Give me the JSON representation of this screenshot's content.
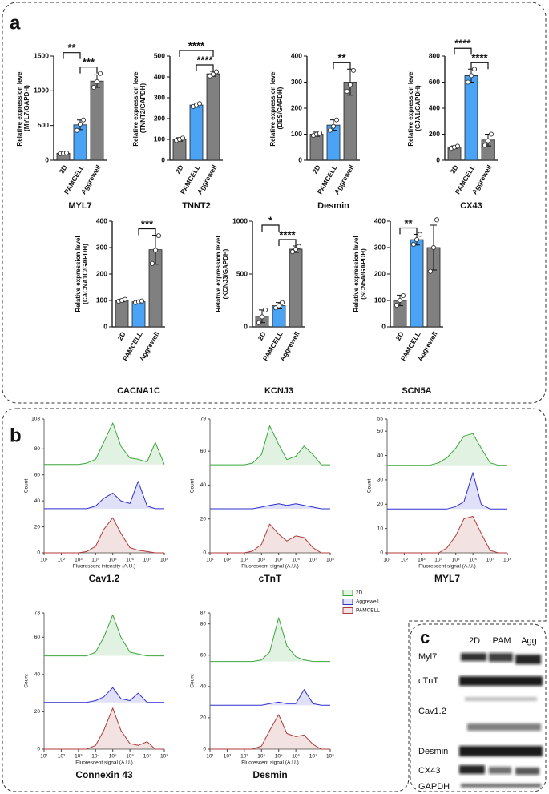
{
  "panel_labels": [
    "a",
    "b",
    "c"
  ],
  "chart_data": [
    {
      "type": "bar",
      "title": "MYL7",
      "ylabel": [
        "Relative expression level",
        "(MYL7/GAPDH)"
      ],
      "categories": [
        "2D",
        "PAMCELL",
        "Aggrewell"
      ],
      "values": [
        100,
        510,
        1140
      ],
      "errors": [
        8,
        70,
        90
      ],
      "points": [
        [
          95,
          100,
          105
        ],
        [
          430,
          520,
          580
        ],
        [
          1050,
          1130,
          1250
        ]
      ],
      "colors": [
        "#808080",
        "#4aa3f5",
        "#808080"
      ],
      "ylim": [
        0,
        1500
      ],
      "yticks": [
        0,
        500,
        1000,
        1500
      ],
      "annotations": [
        {
          "text": "**",
          "between": [
            "2D",
            "PAMCELL"
          ]
        },
        {
          "text": "***",
          "between": [
            "PAMCELL",
            "Aggrewell"
          ]
        }
      ]
    },
    {
      "type": "bar",
      "title": "TNNT2",
      "ylabel": [
        "Relative expression level",
        "(TNNT2/GAPDH)"
      ],
      "categories": [
        "2D",
        "PAMCELL",
        "Aggrewell"
      ],
      "values": [
        100,
        265,
        415
      ],
      "errors": [
        8,
        10,
        12
      ],
      "points": [
        [
          95,
          100,
          106
        ],
        [
          258,
          266,
          272
        ],
        [
          405,
          413,
          425
        ]
      ],
      "colors": [
        "#808080",
        "#4aa3f5",
        "#808080"
      ],
      "ylim": [
        0,
        500
      ],
      "yticks": [
        0,
        100,
        200,
        300,
        400,
        500
      ],
      "annotations": [
        {
          "text": "****",
          "between": [
            "2D",
            "Aggrewell"
          ]
        },
        {
          "text": "****",
          "between": [
            "PAMCELL",
            "Aggrewell"
          ]
        }
      ]
    },
    {
      "type": "bar",
      "title": "Desmin",
      "ylabel": [
        "Relative expression level",
        "(DES/GAPDH)"
      ],
      "categories": [
        "2D",
        "PAMCELL",
        "Aggrewell"
      ],
      "values": [
        100,
        135,
        300
      ],
      "errors": [
        8,
        20,
        50
      ],
      "points": [
        [
          95,
          100,
          104
        ],
        [
          115,
          130,
          155
        ],
        [
          265,
          290,
          345
        ]
      ],
      "colors": [
        "#808080",
        "#4aa3f5",
        "#808080"
      ],
      "ylim": [
        0,
        400
      ],
      "yticks": [
        0,
        100,
        200,
        300,
        400
      ],
      "annotations": [
        {
          "text": "**",
          "between": [
            "PAMCELL",
            "Aggrewell"
          ]
        }
      ]
    },
    {
      "type": "bar",
      "title": "CX43",
      "ylabel": [
        "Relative expression level",
        "(GJA1/GAPDH)"
      ],
      "categories": [
        "2D",
        "PAMCELL",
        "Aggrewell"
      ],
      "values": [
        100,
        650,
        155
      ],
      "errors": [
        10,
        50,
        45
      ],
      "points": [
        [
          92,
          100,
          108
        ],
        [
          600,
          650,
          700
        ],
        [
          115,
          150,
          200
        ]
      ],
      "colors": [
        "#808080",
        "#4aa3f5",
        "#808080"
      ],
      "ylim": [
        0,
        800
      ],
      "yticks": [
        0,
        200,
        400,
        600,
        800
      ],
      "annotations": [
        {
          "text": "****",
          "between": [
            "2D",
            "PAMCELL"
          ]
        },
        {
          "text": "****",
          "between": [
            "PAMCELL",
            "Aggrewell"
          ]
        }
      ]
    },
    {
      "type": "bar",
      "title": "CACNA1C",
      "ylabel": [
        "Relative expression level",
        "(CACNA1C/GAPDH)"
      ],
      "categories": [
        "2D",
        "PAMCELL",
        "Aggrewell"
      ],
      "values": [
        100,
        95,
        292
      ],
      "errors": [
        5,
        4,
        55
      ],
      "points": [
        [
          97,
          100,
          104
        ],
        [
          92,
          95,
          98
        ],
        [
          240,
          290,
          345
        ]
      ],
      "colors": [
        "#808080",
        "#4aa3f5",
        "#808080"
      ],
      "ylim": [
        0,
        400
      ],
      "yticks": [
        0,
        100,
        200,
        300,
        400
      ],
      "annotations": [
        {
          "text": "***",
          "between": [
            "PAMCELL",
            "Aggrewell"
          ]
        }
      ]
    },
    {
      "type": "bar",
      "title": "KCNJ3",
      "ylabel": [
        "Relative expression level",
        "(KCNJ3/GAPDH)"
      ],
      "categories": [
        "2D",
        "PAMCELL",
        "Aggrewell"
      ],
      "values": [
        100,
        200,
        735
      ],
      "errors": [
        60,
        30,
        30
      ],
      "points": [
        [
          40,
          95,
          160
        ],
        [
          180,
          200,
          230
        ],
        [
          710,
          735,
          760
        ]
      ],
      "colors": [
        "#808080",
        "#4aa3f5",
        "#808080"
      ],
      "ylim": [
        0,
        1000
      ],
      "yticks": [
        0,
        500,
        1000
      ],
      "annotations": [
        {
          "text": "*",
          "between": [
            "2D",
            "PAMCELL"
          ]
        },
        {
          "text": "****",
          "between": [
            "PAMCELL",
            "Aggrewell"
          ]
        }
      ]
    },
    {
      "type": "bar",
      "title": "SCN5A",
      "ylabel": [
        "Relative expression level",
        "(SCN5A/GAPDH)"
      ],
      "categories": [
        "2D",
        "PAMCELL",
        "Aggrewell"
      ],
      "values": [
        100,
        330,
        300
      ],
      "errors": [
        20,
        20,
        85
      ],
      "points": [
        [
          82,
          100,
          118
        ],
        [
          312,
          330,
          350
        ],
        [
          210,
          300,
          405
        ]
      ],
      "colors": [
        "#808080",
        "#4aa3f5",
        "#808080"
      ],
      "ylim": [
        0,
        400
      ],
      "yticks": [
        0,
        100,
        200,
        300,
        400
      ],
      "annotations": [
        {
          "text": "**",
          "between": [
            "2D",
            "PAMCELL"
          ]
        }
      ]
    },
    {
      "type": "area",
      "title": "Cav1.2",
      "xlabel": "Fluorescent intensity (A.U.)",
      "ylabel": "Count",
      "log_x": true,
      "x": [
        10,
        30,
        100,
        300,
        1000,
        3000,
        10000,
        30000,
        100000,
        300000,
        1000000,
        3000000,
        10000000,
        30000000,
        100000000
      ],
      "xlim": [
        10,
        100000000
      ],
      "xticks": [
        {
          "value": 10,
          "label": "10¹"
        },
        {
          "value": 100,
          "label": "10²"
        },
        {
          "value": 1000,
          "label": "10³"
        },
        {
          "value": 10000,
          "label": "10⁴"
        },
        {
          "value": 100000,
          "label": "10⁵"
        },
        {
          "value": 1000000,
          "label": "10⁶"
        },
        {
          "value": 10000000,
          "label": "10⁷"
        },
        {
          "value": 100000000,
          "label": "10⁸"
        }
      ],
      "ylim": [
        0,
        103
      ],
      "yticks": [
        0,
        20,
        40,
        60,
        80,
        103
      ],
      "series": [
        {
          "name": "2D",
          "color": "#3aa63a",
          "values": [
            68,
            68,
            68,
            68,
            68,
            69,
            72,
            85,
            100,
            82,
            73,
            72,
            70,
            85,
            68
          ]
        },
        {
          "name": "Aggrewell",
          "color": "#2f2fd0",
          "values": [
            34,
            34,
            34,
            34,
            34,
            34,
            36,
            42,
            46,
            40,
            38,
            55,
            36,
            34,
            34
          ]
        },
        {
          "name": "PAMCELL",
          "color": "#b03a3a",
          "values": [
            0,
            0,
            0,
            0,
            0,
            1,
            5,
            18,
            27,
            15,
            4,
            2,
            1,
            0,
            0
          ]
        }
      ]
    },
    {
      "type": "area",
      "title": "cTnT",
      "xlabel": "Fluorescent signal (A.U.)",
      "ylabel": "Count",
      "log_x": true,
      "x": [
        10,
        30,
        100,
        300,
        1000,
        3000,
        10000,
        30000,
        100000,
        300000,
        1000000,
        3000000,
        10000000,
        30000000,
        100000000
      ],
      "xlim": [
        10,
        100000000
      ],
      "xticks": [
        {
          "value": 10,
          "label": "10¹"
        },
        {
          "value": 100,
          "label": "10²"
        },
        {
          "value": 1000,
          "label": "10³"
        },
        {
          "value": 10000,
          "label": "10⁴"
        },
        {
          "value": 100000,
          "label": "10⁵"
        },
        {
          "value": 1000000,
          "label": "10⁶"
        },
        {
          "value": 10000000,
          "label": "10⁷"
        },
        {
          "value": 100000000,
          "label": "10⁸"
        }
      ],
      "ylim": [
        0,
        79
      ],
      "yticks": [
        0,
        20,
        40,
        60,
        79
      ],
      "series": [
        {
          "name": "2D",
          "color": "#3aa63a",
          "values": [
            52,
            52,
            52,
            52,
            52,
            53,
            58,
            75,
            64,
            55,
            57,
            63,
            58,
            52,
            52
          ]
        },
        {
          "name": "Aggrewell",
          "color": "#2f2fd0",
          "values": [
            26,
            26,
            26,
            26,
            26,
            26,
            27,
            28,
            29,
            28,
            29,
            28,
            27,
            26,
            26
          ]
        },
        {
          "name": "PAMCELL",
          "color": "#b03a3a",
          "values": [
            0,
            0,
            0,
            0,
            0,
            1,
            5,
            17,
            11,
            7,
            10,
            9,
            3,
            0,
            0
          ]
        }
      ]
    },
    {
      "type": "area",
      "title": "MYL7",
      "xlabel": "Fluorescent signal (A.U.)",
      "ylabel": "Count",
      "log_x": true,
      "x": [
        10,
        30,
        100,
        300,
        1000,
        3000,
        10000,
        30000,
        100000,
        300000,
        1000000,
        3000000,
        10000000,
        30000000,
        100000000
      ],
      "xlim": [
        10,
        100000000
      ],
      "xticks": [
        {
          "value": 10,
          "label": "10¹"
        },
        {
          "value": 100,
          "label": "10²"
        },
        {
          "value": 1000,
          "label": "10³"
        },
        {
          "value": 10000,
          "label": "10⁴"
        },
        {
          "value": 100000,
          "label": "10⁵"
        },
        {
          "value": 1000000,
          "label": "10⁶"
        },
        {
          "value": 10000000,
          "label": "10⁷"
        },
        {
          "value": 100000000,
          "label": "10⁸"
        }
      ],
      "ylim": [
        0,
        55
      ],
      "yticks": [
        0,
        10,
        20,
        30,
        40,
        50,
        55
      ],
      "series": [
        {
          "name": "2D",
          "color": "#3aa63a",
          "values": [
            36,
            36,
            36,
            36,
            36,
            36,
            37,
            39,
            43,
            48,
            49,
            43,
            37,
            36,
            36
          ]
        },
        {
          "name": "Aggrewell",
          "color": "#2f2fd0",
          "values": [
            18,
            18,
            18,
            18,
            18,
            18,
            18,
            18,
            19,
            21,
            33,
            20,
            18,
            18,
            18
          ]
        },
        {
          "name": "PAMCELL",
          "color": "#b03a3a",
          "values": [
            0,
            0,
            0,
            0,
            0,
            0,
            0,
            2,
            7,
            14,
            15,
            8,
            1,
            0,
            0
          ]
        }
      ]
    },
    {
      "type": "area",
      "title": "Connexin 43",
      "xlabel": "Fluorescent signal (A.U.)",
      "ylabel": "Count",
      "log_x": true,
      "x": [
        10,
        30,
        100,
        300,
        1000,
        3000,
        10000,
        30000,
        100000,
        300000,
        1000000,
        3000000,
        10000000,
        30000000,
        100000000
      ],
      "xlim": [
        10,
        100000000
      ],
      "xticks": [
        {
          "value": 10,
          "label": "10¹"
        },
        {
          "value": 100,
          "label": "10²"
        },
        {
          "value": 1000,
          "label": "10³"
        },
        {
          "value": 10000,
          "label": "10⁴"
        },
        {
          "value": 100000,
          "label": "10⁵"
        },
        {
          "value": 1000000,
          "label": "10⁶"
        },
        {
          "value": 10000000,
          "label": "10⁷"
        },
        {
          "value": 100000000,
          "label": "10⁸"
        }
      ],
      "ylim": [
        0,
        73
      ],
      "yticks": [
        0,
        20,
        40,
        60,
        73
      ],
      "series": [
        {
          "name": "2D",
          "color": "#3aa63a",
          "values": [
            50,
            50,
            50,
            50,
            50,
            50,
            52,
            60,
            72,
            60,
            52,
            51,
            50,
            50,
            50
          ]
        },
        {
          "name": "Aggrewell",
          "color": "#2f2fd0",
          "values": [
            25,
            25,
            25,
            25,
            25,
            25,
            26,
            28,
            33,
            27,
            26,
            30,
            25,
            25,
            25
          ]
        },
        {
          "name": "PAMCELL",
          "color": "#b03a3a",
          "values": [
            0,
            0,
            0,
            0,
            0,
            0,
            2,
            10,
            22,
            10,
            3,
            2,
            4,
            0,
            0
          ]
        }
      ]
    },
    {
      "type": "area",
      "title": "Desmin",
      "xlabel": "Fluorescent signal (A.U.)",
      "ylabel": "Count",
      "log_x": true,
      "x": [
        10,
        30,
        100,
        300,
        1000,
        3000,
        10000,
        30000,
        100000,
        300000,
        1000000,
        3000000,
        10000000,
        30000000,
        100000000
      ],
      "xlim": [
        10,
        100000000
      ],
      "xticks": [
        {
          "value": 10,
          "label": "10¹"
        },
        {
          "value": 100,
          "label": "10²"
        },
        {
          "value": 1000,
          "label": "10³"
        },
        {
          "value": 10000,
          "label": "10⁴"
        },
        {
          "value": 100000,
          "label": "10⁵"
        },
        {
          "value": 1000000,
          "label": "10⁶"
        },
        {
          "value": 10000000,
          "label": "10⁷"
        },
        {
          "value": 100000000,
          "label": "10⁸"
        }
      ],
      "ylim": [
        0,
        87
      ],
      "yticks": [
        0,
        20,
        40,
        60,
        80,
        87
      ],
      "series": [
        {
          "name": "2D",
          "color": "#3aa63a",
          "values": [
            56,
            56,
            56,
            56,
            56,
            56,
            57,
            62,
            84,
            66,
            59,
            57,
            56,
            56,
            56
          ]
        },
        {
          "name": "Aggrewell",
          "color": "#2f2fd0",
          "values": [
            28,
            28,
            28,
            28,
            28,
            28,
            28,
            29,
            30,
            29,
            29,
            38,
            29,
            28,
            28
          ]
        },
        {
          "name": "PAMCELL",
          "color": "#b03a3a",
          "values": [
            0,
            0,
            0,
            0,
            0,
            0,
            2,
            12,
            22,
            10,
            8,
            9,
            3,
            0,
            0
          ]
        }
      ]
    }
  ],
  "blot": {
    "columns": [
      "2D",
      "PAM",
      "Agg"
    ],
    "rows": [
      "Myl7",
      "cTnT",
      "Cav1.2",
      "Desmin",
      "CX43",
      "GAPDH"
    ]
  }
}
